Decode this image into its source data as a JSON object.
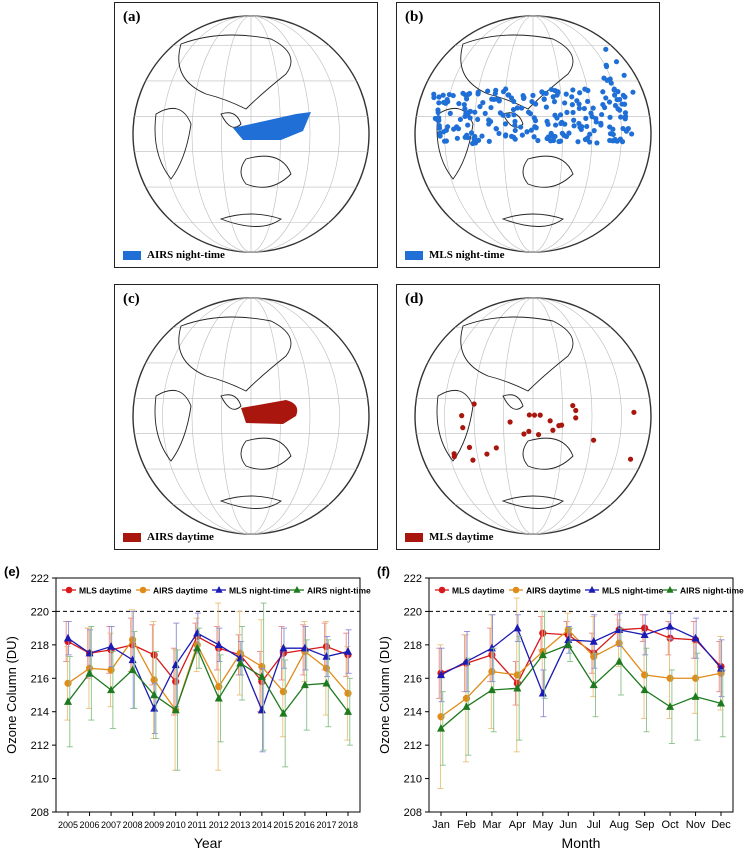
{
  "panels": [
    {
      "letter": "(a)",
      "legend": "AIRS night-time",
      "color": "#1f6fd6",
      "kind": "area",
      "day": false
    },
    {
      "letter": "(b)",
      "legend": "MLS night-time",
      "color": "#1f6fd6",
      "kind": "dots",
      "day": false
    },
    {
      "letter": "(c)",
      "legend": "AIRS daytime",
      "color": "#a8160d",
      "kind": "area",
      "day": true
    },
    {
      "letter": "(d)",
      "legend": "MLS daytime",
      "color": "#a8160d",
      "kind": "dots",
      "day": true
    }
  ],
  "colors": {
    "mls_day": "#d7191c",
    "airs_day": "#e08c1a",
    "mls_night": "#1a1ab4",
    "airs_night": "#1f7a1f"
  },
  "chart_data": [
    {
      "letter": "(e)",
      "type": "line",
      "xlabel": "Year",
      "ylabel": "Ozone Column (DU)",
      "ylim": [
        208,
        222
      ],
      "yticks": [
        208,
        210,
        212,
        214,
        216,
        218,
        220,
        222
      ],
      "reference_line": 220,
      "categories": [
        "2005",
        "2006",
        "2007",
        "2008",
        "2009",
        "2010",
        "2011",
        "2012",
        "2013",
        "2014",
        "2015",
        "2016",
        "2017",
        "2018"
      ],
      "series": [
        {
          "name": "MLS daytime",
          "marker": "circle",
          "values": [
            218.2,
            217.5,
            217.7,
            218.0,
            217.4,
            215.8,
            218.5,
            217.8,
            217.4,
            215.8,
            217.5,
            217.7,
            217.9,
            217.4
          ],
          "err": [
            1.2,
            1.5,
            1.4,
            1.6,
            1.8,
            2.0,
            0.8,
            1.3,
            1.2,
            1.8,
            1.6,
            1.5,
            1.4,
            1.3
          ]
        },
        {
          "name": "AIRS daytime",
          "marker": "circle",
          "values": [
            215.7,
            216.6,
            216.5,
            218.3,
            215.9,
            214.1,
            218.0,
            215.5,
            217.5,
            216.7,
            215.2,
            217.6,
            216.6,
            215.1
          ],
          "err": [
            2.2,
            2.4,
            2.2,
            1.8,
            3.5,
            3.6,
            1.6,
            5.0,
            2.5,
            2.8,
            2.7,
            1.8,
            2.8,
            2.8
          ]
        },
        {
          "name": "MLS night-time",
          "marker": "triangle",
          "values": [
            218.4,
            217.5,
            217.9,
            217.1,
            214.2,
            216.8,
            218.7,
            218.0,
            217.2,
            214.1,
            217.8,
            217.8,
            217.3,
            217.6
          ],
          "err": [
            1.0,
            1.4,
            1.2,
            2.9,
            1.5,
            2.5,
            1.2,
            1.0,
            1.0,
            2.5,
            1.2,
            1.3,
            1.2,
            1.3
          ]
        },
        {
          "name": "AIRS night-time",
          "marker": "triangle",
          "values": [
            214.6,
            216.3,
            215.3,
            216.5,
            215.0,
            214.1,
            217.8,
            214.8,
            216.9,
            216.1,
            213.9,
            215.6,
            215.7,
            214.0
          ],
          "err": [
            2.7,
            2.8,
            2.3,
            2.3,
            2.6,
            3.6,
            1.2,
            2.6,
            2.2,
            4.4,
            3.2,
            2.7,
            2.6,
            2.0
          ]
        }
      ]
    },
    {
      "letter": "(f)",
      "type": "line",
      "xlabel": "Month",
      "ylabel": "Ozone Column (DU)",
      "ylim": [
        208,
        222
      ],
      "yticks": [
        208,
        210,
        212,
        214,
        216,
        218,
        220,
        222
      ],
      "reference_line": 220,
      "categories": [
        "Jan",
        "Feb",
        "Mar",
        "Apr",
        "May",
        "Jun",
        "Jul",
        "Aug",
        "Sep",
        "Oct",
        "Nov",
        "Dec"
      ],
      "series": [
        {
          "name": "MLS daytime",
          "marker": "circle",
          "values": [
            216.3,
            216.9,
            217.4,
            215.7,
            218.7,
            218.6,
            217.5,
            218.9,
            219.0,
            218.4,
            218.3,
            216.7
          ],
          "err": [
            1.5,
            1.7,
            1.6,
            1.3,
            1.0,
            0.8,
            1.2,
            0.9,
            0.8,
            1.0,
            1.1,
            1.5
          ]
        },
        {
          "name": "AIRS daytime",
          "marker": "circle",
          "values": [
            213.7,
            214.8,
            216.4,
            216.2,
            217.6,
            218.9,
            217.3,
            218.1,
            216.2,
            216.0,
            216.0,
            216.3
          ],
          "err": [
            4.3,
            3.8,
            3.4,
            4.6,
            2.4,
            1.0,
            2.4,
            1.4,
            2.6,
            2.4,
            2.1,
            2.2
          ]
        },
        {
          "name": "MLS night-time",
          "marker": "triangle",
          "values": [
            216.2,
            217.0,
            217.8,
            219.0,
            215.1,
            218.3,
            218.2,
            218.9,
            218.6,
            219.1,
            218.4,
            216.6
          ],
          "err": [
            1.6,
            1.8,
            2.0,
            0.8,
            1.4,
            0.8,
            1.6,
            1.0,
            1.2,
            0.8,
            1.2,
            1.7
          ]
        },
        {
          "name": "AIRS night-time",
          "marker": "triangle",
          "values": [
            213.0,
            214.3,
            215.3,
            215.4,
            217.4,
            218.0,
            215.6,
            217.0,
            215.3,
            214.3,
            214.9,
            214.5
          ],
          "err": [
            2.2,
            2.9,
            2.5,
            3.1,
            2.6,
            1.0,
            1.9,
            2.0,
            2.5,
            2.2,
            2.6,
            2.0
          ]
        }
      ]
    }
  ]
}
